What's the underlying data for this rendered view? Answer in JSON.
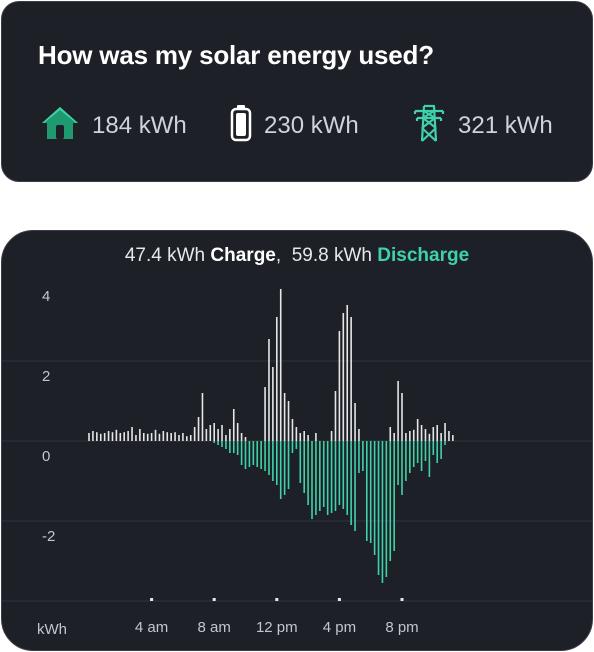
{
  "summary": {
    "title": "How was my solar energy used?",
    "home_value": "184 kWh",
    "battery_value": "230 kWh",
    "grid_value": "321 kWh",
    "home_icon": "house-icon",
    "battery_icon": "battery-icon",
    "grid_icon": "power-tower-icon",
    "accent_color": "#3fd2a8",
    "home_color": "#1f9a70"
  },
  "chart_header": {
    "charge_value": "47.4 kWh",
    "charge_label": "Charge",
    "separator": ",",
    "discharge_value": "59.8 kWh",
    "discharge_label": "Discharge"
  },
  "chart_data": {
    "type": "bar",
    "ylabel": "kWh",
    "ylim": [
      -4,
      4.3
    ],
    "y_ticks": [
      4,
      2,
      0,
      -2
    ],
    "x_tick_labels": [
      "4 am",
      "8 am",
      "12 pm",
      "4 pm",
      "8 pm"
    ],
    "x_tick_hours": [
      4,
      8,
      12,
      16,
      20
    ],
    "grid": "horizontal",
    "series": [
      {
        "name": "Charge",
        "color": "#e6e6e6",
        "points": [
          [
            0.0,
            0.2
          ],
          [
            0.25,
            0.25
          ],
          [
            0.5,
            0.22
          ],
          [
            0.75,
            0.18
          ],
          [
            1.0,
            0.2
          ],
          [
            1.25,
            0.25
          ],
          [
            1.5,
            0.22
          ],
          [
            1.75,
            0.28
          ],
          [
            2.0,
            0.2
          ],
          [
            2.25,
            0.22
          ],
          [
            2.5,
            0.25
          ],
          [
            2.75,
            0.35
          ],
          [
            3.0,
            0.15
          ],
          [
            3.25,
            0.3
          ],
          [
            3.5,
            0.2
          ],
          [
            3.75,
            0.18
          ],
          [
            4.0,
            0.2
          ],
          [
            4.25,
            0.28
          ],
          [
            4.5,
            0.18
          ],
          [
            4.75,
            0.25
          ],
          [
            5.0,
            0.22
          ],
          [
            5.25,
            0.2
          ],
          [
            5.5,
            0.22
          ],
          [
            5.75,
            0.15
          ],
          [
            6.0,
            0.2
          ],
          [
            6.25,
            0.12
          ],
          [
            6.5,
            0.15
          ],
          [
            6.75,
            0.35
          ],
          [
            7.0,
            0.6
          ],
          [
            7.25,
            1.2
          ],
          [
            7.5,
            0.3
          ],
          [
            7.75,
            0.4
          ],
          [
            8.0,
            0.45
          ],
          [
            8.25,
            0.3
          ],
          [
            8.5,
            0.4
          ],
          [
            8.75,
            0.15
          ],
          [
            9.0,
            0.3
          ],
          [
            9.25,
            0.8
          ],
          [
            9.5,
            0.45
          ],
          [
            9.75,
            0.2
          ],
          [
            10.0,
            0.1
          ],
          [
            11.25,
            1.35
          ],
          [
            11.5,
            2.55
          ],
          [
            11.75,
            1.85
          ],
          [
            12.0,
            3.1
          ],
          [
            12.25,
            3.8
          ],
          [
            12.5,
            1.2
          ],
          [
            12.75,
            1.0
          ],
          [
            13.0,
            0.55
          ],
          [
            13.25,
            0.35
          ],
          [
            13.5,
            0.2
          ],
          [
            13.75,
            0.25
          ],
          [
            14.0,
            0.15
          ],
          [
            14.5,
            0.2
          ],
          [
            15.5,
            0.25
          ],
          [
            15.75,
            1.25
          ],
          [
            16.0,
            2.75
          ],
          [
            16.25,
            3.2
          ],
          [
            16.5,
            3.4
          ],
          [
            16.75,
            3.1
          ],
          [
            17.0,
            0.95
          ],
          [
            17.25,
            0.3
          ],
          [
            19.25,
            0.35
          ],
          [
            19.5,
            0.2
          ],
          [
            19.75,
            1.5
          ],
          [
            20.0,
            1.2
          ],
          [
            20.25,
            0.2
          ],
          [
            20.5,
            0.25
          ],
          [
            20.75,
            0.28
          ],
          [
            21.0,
            0.55
          ],
          [
            21.25,
            0.4
          ],
          [
            21.5,
            0.3
          ],
          [
            21.75,
            0.18
          ],
          [
            22.0,
            0.35
          ],
          [
            22.25,
            0.4
          ],
          [
            22.5,
            0.2
          ],
          [
            22.75,
            0.45
          ],
          [
            23.0,
            0.25
          ],
          [
            23.25,
            0.15
          ]
        ]
      },
      {
        "name": "Discharge",
        "color": "#3fd2a8",
        "points": [
          [
            8.0,
            -0.05
          ],
          [
            8.25,
            -0.1
          ],
          [
            8.5,
            -0.15
          ],
          [
            8.75,
            -0.2
          ],
          [
            9.0,
            -0.3
          ],
          [
            9.25,
            -0.3
          ],
          [
            9.5,
            -0.35
          ],
          [
            9.75,
            -0.6
          ],
          [
            10.0,
            -0.7
          ],
          [
            10.25,
            -0.65
          ],
          [
            10.5,
            -0.6
          ],
          [
            10.75,
            -0.65
          ],
          [
            11.0,
            -0.7
          ],
          [
            11.25,
            -0.75
          ],
          [
            11.5,
            -0.85
          ],
          [
            11.75,
            -1.0
          ],
          [
            12.0,
            -1.1
          ],
          [
            12.25,
            -1.45
          ],
          [
            12.5,
            -1.35
          ],
          [
            12.75,
            -1.2
          ],
          [
            13.0,
            -0.3
          ],
          [
            13.25,
            -0.2
          ],
          [
            13.5,
            -1.05
          ],
          [
            13.75,
            -1.3
          ],
          [
            14.0,
            -1.6
          ],
          [
            14.25,
            -1.95
          ],
          [
            14.5,
            -1.85
          ],
          [
            14.75,
            -1.75
          ],
          [
            15.0,
            -1.65
          ],
          [
            15.25,
            -1.85
          ],
          [
            15.5,
            -1.8
          ],
          [
            15.75,
            -1.75
          ],
          [
            16.0,
            -1.6
          ],
          [
            16.25,
            -1.7
          ],
          [
            16.5,
            -1.85
          ],
          [
            16.75,
            -2.1
          ],
          [
            17.0,
            -2.25
          ],
          [
            17.25,
            -0.8
          ],
          [
            17.5,
            -0.75
          ],
          [
            17.75,
            -2.5
          ],
          [
            18.0,
            -2.55
          ],
          [
            18.25,
            -2.85
          ],
          [
            18.5,
            -3.35
          ],
          [
            18.75,
            -3.55
          ],
          [
            19.0,
            -3.4
          ],
          [
            19.25,
            -3.0
          ],
          [
            19.5,
            -2.75
          ],
          [
            19.75,
            -1.1
          ],
          [
            20.0,
            -1.35
          ],
          [
            20.25,
            -1.0
          ],
          [
            20.5,
            -0.8
          ],
          [
            20.75,
            -0.65
          ],
          [
            21.0,
            -0.55
          ],
          [
            21.25,
            -0.75
          ],
          [
            21.5,
            -0.5
          ],
          [
            21.75,
            -0.9
          ],
          [
            22.0,
            -0.35
          ],
          [
            22.25,
            -0.55
          ],
          [
            22.5,
            -0.45
          ],
          [
            22.75,
            -0.1
          ]
        ]
      }
    ]
  }
}
